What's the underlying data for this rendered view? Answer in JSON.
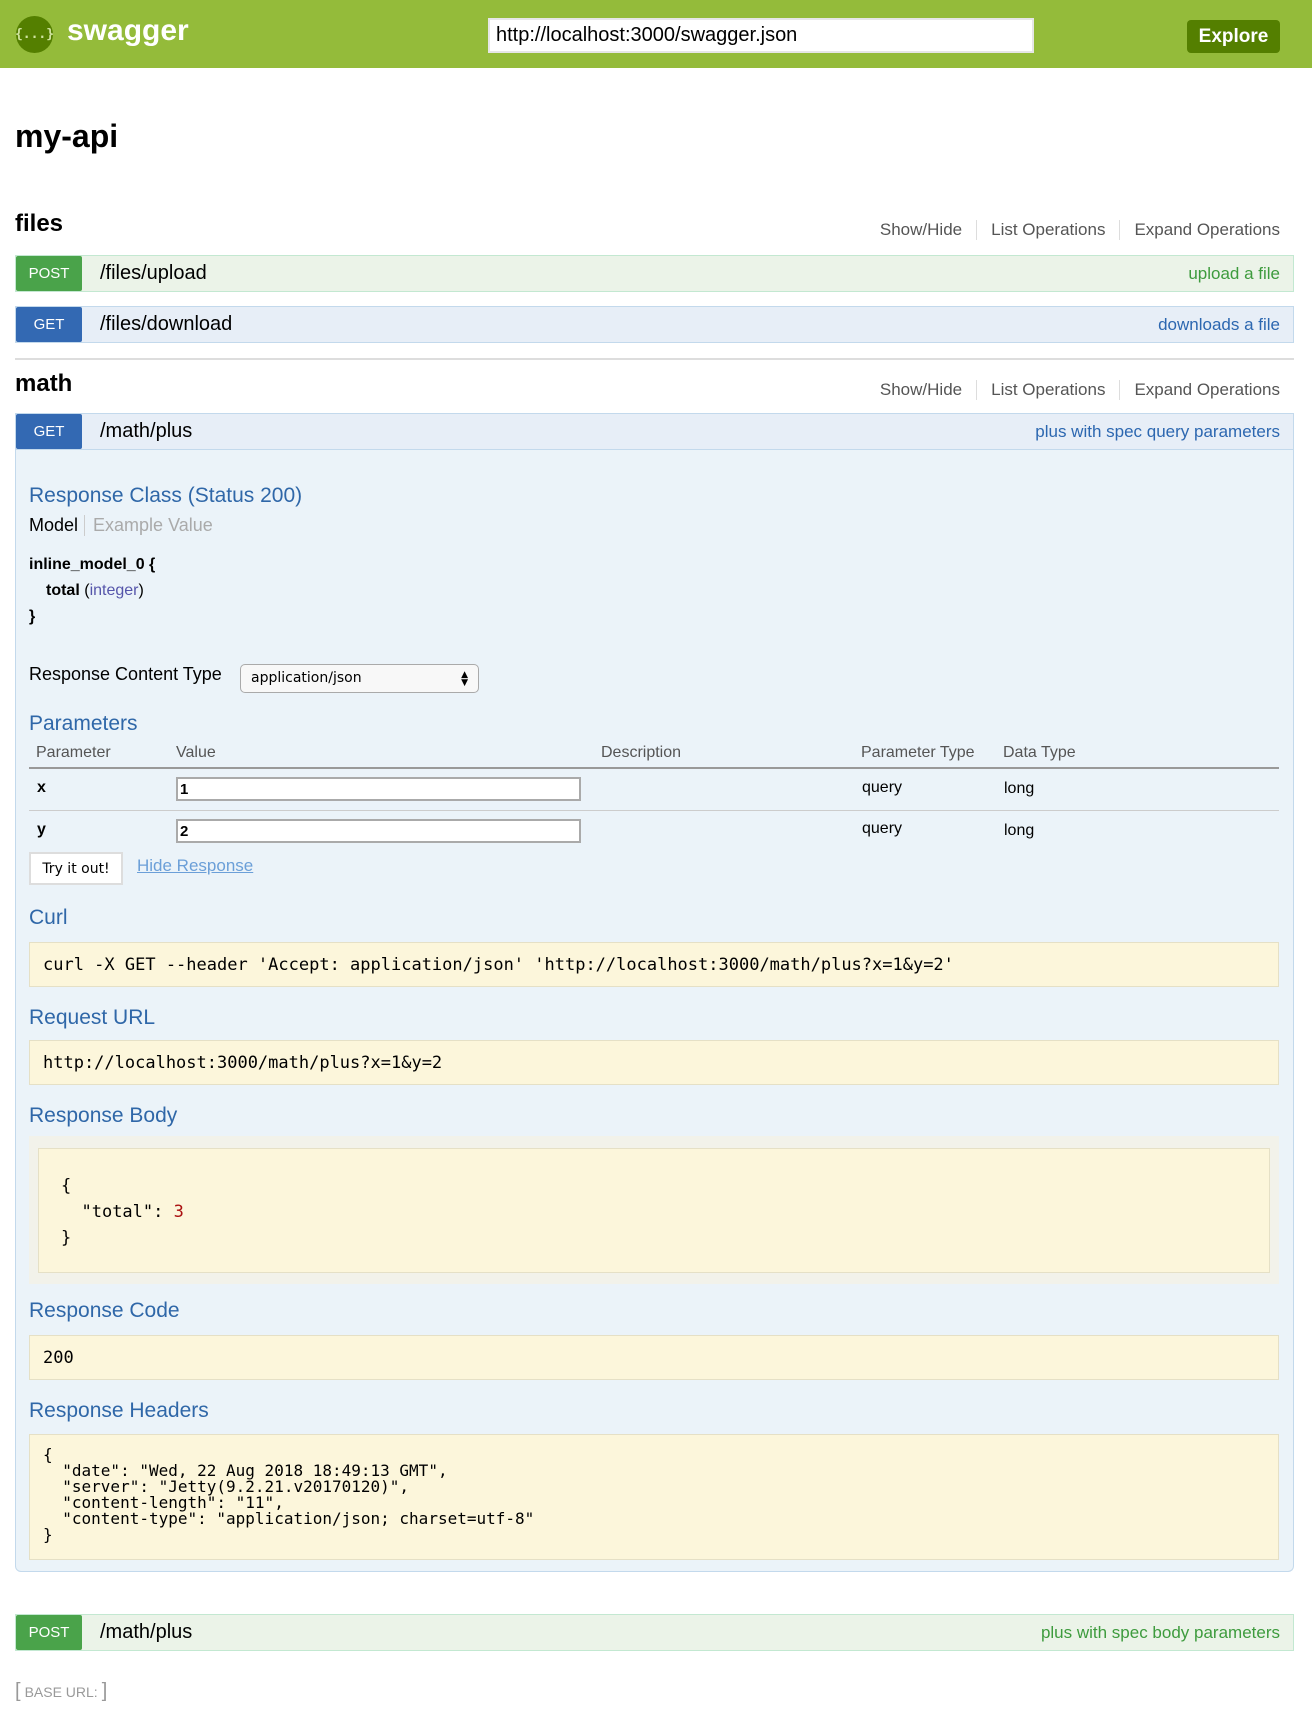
{
  "header": {
    "brand": "swagger",
    "logo_glyph": "{...}",
    "url_value": "http://localhost:3000/swagger.json",
    "explore_label": "Explore"
  },
  "title": "my-api",
  "resource_links": [
    "Show/Hide",
    "List Operations",
    "Expand Operations"
  ],
  "resources": [
    {
      "name": "files",
      "operations": [
        {
          "method": "POST",
          "path": "/files/upload",
          "summary": "upload a file"
        },
        {
          "method": "GET",
          "path": "/files/download",
          "summary": "downloads a file"
        }
      ]
    },
    {
      "name": "math",
      "operations": [
        {
          "method": "GET",
          "path": "/math/plus",
          "summary": "plus with spec query parameters"
        },
        {
          "method": "POST",
          "path": "/math/plus",
          "summary": "plus with spec body parameters"
        }
      ]
    }
  ],
  "expanded": {
    "response_class_title": "Response Class (Status 200)",
    "model_tab": "Model",
    "example_tab": "Example Value",
    "model_name": "inline_model_0 {",
    "model_prop": "total",
    "model_type": "integer",
    "model_close": "}",
    "content_type_label": "Response Content Type",
    "content_type_value": "application/json",
    "parameters_title": "Parameters",
    "param_headers": [
      "Parameter",
      "Value",
      "Description",
      "Parameter Type",
      "Data Type"
    ],
    "params": [
      {
        "name": "x",
        "value": "1",
        "type": "query",
        "data_type": "long"
      },
      {
        "name": "y",
        "value": "2",
        "type": "query",
        "data_type": "long"
      }
    ],
    "try_label": "Try it out!",
    "hide_label": "Hide Response",
    "curl_title": "Curl",
    "curl": "curl -X GET --header 'Accept: application/json' 'http://localhost:3000/math/plus?x=1&y=2'",
    "request_url_title": "Request URL",
    "request_url": "http://localhost:3000/math/plus?x=1&y=2",
    "response_body_title": "Response Body",
    "body_open": "{",
    "body_key": "\"total\": ",
    "body_value": "3",
    "body_close": "}",
    "response_code_title": "Response Code",
    "response_code": "200",
    "response_headers_title": "Response Headers",
    "response_headers": "{\n  \"date\": \"Wed, 22 Aug 2018 18:49:13 GMT\",\n  \"server\": \"Jetty(9.2.21.v20170120)\",\n  \"content-length\": \"11\",\n  \"content-type\": \"application/json; charset=utf-8\"\n}"
  },
  "footer": {
    "base_url": "BASE URL:"
  }
}
